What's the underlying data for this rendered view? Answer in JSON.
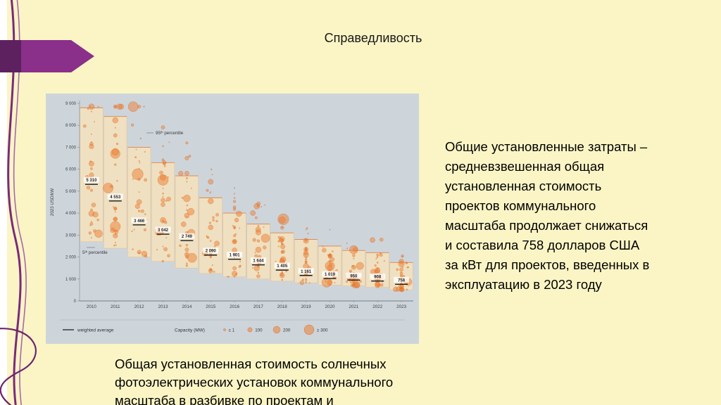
{
  "slide": {
    "title": "Справедливость",
    "right_text": "Общие установленные затраты –\nсредневзвешенная общая\nустановленная стоимость\nпроектов коммунального\nмасштаба продолжает снижаться\nи составила 758 долларов США\nза кВт для проектов, введенных в\nэксплуатацию в 2023 году",
    "caption": "Общая установленная стоимость солнечных\nфотоэлектрических установок коммунального\nмасштаба в разбивке по проектам и"
  },
  "colors": {
    "slide_background": "#FBF5C6",
    "chart_panel_background": "#CDD5DB",
    "box_fill": "#F0E0C0",
    "box_edge": "#E2BE92",
    "box_top_line": "#DE8345",
    "bubble_fill": "#ED7D31",
    "bubble_edge": "#D9641E",
    "accent_purple": "#8A2F8A",
    "accent_dark_purple": "#5D2160"
  },
  "chart_data": {
    "type": "scatter",
    "title": "",
    "ylabel": "2023 USD/kW",
    "ylim": [
      0,
      9000
    ],
    "ytick_step": 1000,
    "grid": false,
    "legend_position": "bottom",
    "categories": [
      "2010",
      "2011",
      "2012",
      "2013",
      "2014",
      "2015",
      "2016",
      "2017",
      "2018",
      "2019",
      "2020",
      "2021",
      "2022",
      "2023"
    ],
    "series": [
      {
        "name": "weighted average",
        "values": [
          5310,
          4553,
          3466,
          3042,
          2749,
          2090,
          1901,
          1644,
          1405,
          1161,
          1019,
          950,
          908,
          758
        ],
        "labels": [
          "5 310",
          "4 553",
          "3 466",
          "3 042",
          "2 749",
          "2 090",
          "1 901",
          "1 644",
          "1 405",
          "1 161",
          "1 019",
          "950",
          "908",
          "758"
        ]
      }
    ],
    "percentile_5": [
      2700,
      2400,
      2000,
      1800,
      1500,
      1250,
      1100,
      1000,
      900,
      820,
      720,
      680,
      620,
      500
    ],
    "percentile_95": [
      8800,
      8400,
      7000,
      6300,
      5700,
      4700,
      4000,
      3500,
      3100,
      2800,
      2500,
      2300,
      2200,
      1750
    ],
    "annotations": {
      "p95_label": "95ᵗʰ percentile",
      "p5_label": "5ᵗʰ percentile"
    },
    "legend": {
      "line_label": "weighted average",
      "capacity_label": "Capacity (MW)",
      "sizes": [
        "≤ 1",
        "100",
        "200",
        "≥ 300"
      ]
    }
  }
}
